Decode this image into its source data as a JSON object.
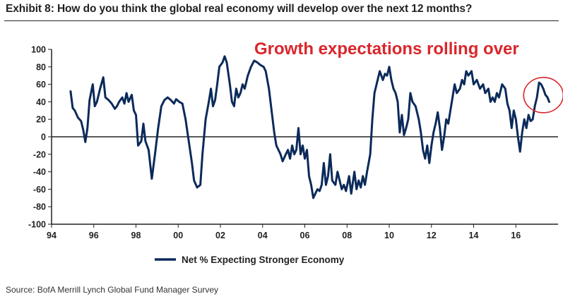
{
  "chart_data": {
    "type": "line",
    "title": "Exhibit 8: How do you think the global real economy will develop over the next 12 months?",
    "annotation": "Growth expectations rolling over",
    "source": "Source: BofA Merrill Lynch Global Fund Manager Survey",
    "xlabel": "",
    "ylabel": "",
    "xlim": [
      1994,
      2018
    ],
    "ylim": [
      -100,
      100
    ],
    "x_ticks": [
      1994,
      1996,
      1998,
      2000,
      2002,
      2004,
      2006,
      2008,
      2010,
      2012,
      2014,
      2016
    ],
    "x_tick_labels": [
      "94",
      "96",
      "98",
      "00",
      "02",
      "04",
      "06",
      "08",
      "10",
      "12",
      "14",
      "16"
    ],
    "y_ticks": [
      -100,
      -80,
      -60,
      -40,
      -20,
      0,
      20,
      40,
      60,
      80,
      100
    ],
    "y_tick_labels": [
      "-100",
      "-80",
      "-60",
      "-40",
      "-20",
      "0",
      "20",
      "40",
      "60",
      "80",
      "100"
    ],
    "legend": {
      "position": "bottom",
      "label": "Net % Expecting Stronger Economy"
    },
    "colors": {
      "series": "#0b2a5a",
      "annotation": "#d9262c",
      "axis": "#222222"
    },
    "series": [
      {
        "name": "Net % Expecting Stronger Economy",
        "points": [
          [
            1994.9,
            52
          ],
          [
            1995.0,
            33
          ],
          [
            1995.1,
            30
          ],
          [
            1995.25,
            22
          ],
          [
            1995.4,
            18
          ],
          [
            1995.5,
            8
          ],
          [
            1995.6,
            -6
          ],
          [
            1995.7,
            10
          ],
          [
            1995.8,
            42
          ],
          [
            1995.95,
            60
          ],
          [
            1996.05,
            35
          ],
          [
            1996.15,
            40
          ],
          [
            1996.3,
            55
          ],
          [
            1996.45,
            68
          ],
          [
            1996.55,
            45
          ],
          [
            1996.7,
            42
          ],
          [
            1996.85,
            38
          ],
          [
            1997.0,
            32
          ],
          [
            1997.1,
            35
          ],
          [
            1997.2,
            40
          ],
          [
            1997.35,
            45
          ],
          [
            1997.45,
            38
          ],
          [
            1997.55,
            50
          ],
          [
            1997.65,
            40
          ],
          [
            1997.8,
            48
          ],
          [
            1997.9,
            30
          ],
          [
            1998.0,
            25
          ],
          [
            1998.1,
            -10
          ],
          [
            1998.25,
            -5
          ],
          [
            1998.35,
            15
          ],
          [
            1998.45,
            -5
          ],
          [
            1998.6,
            -15
          ],
          [
            1998.75,
            -48
          ],
          [
            1998.9,
            -20
          ],
          [
            1999.05,
            10
          ],
          [
            1999.2,
            35
          ],
          [
            1999.35,
            42
          ],
          [
            1999.5,
            45
          ],
          [
            1999.65,
            42
          ],
          [
            1999.8,
            38
          ],
          [
            1999.9,
            43
          ],
          [
            2000.05,
            40
          ],
          [
            2000.2,
            38
          ],
          [
            2000.35,
            20
          ],
          [
            2000.5,
            -5
          ],
          [
            2000.65,
            -30
          ],
          [
            2000.75,
            -50
          ],
          [
            2000.9,
            -58
          ],
          [
            2001.05,
            -55
          ],
          [
            2001.15,
            -20
          ],
          [
            2001.3,
            20
          ],
          [
            2001.45,
            40
          ],
          [
            2001.55,
            55
          ],
          [
            2001.65,
            35
          ],
          [
            2001.75,
            42
          ],
          [
            2001.85,
            60
          ],
          [
            2001.95,
            80
          ],
          [
            2002.1,
            85
          ],
          [
            2002.2,
            92
          ],
          [
            2002.3,
            85
          ],
          [
            2002.45,
            60
          ],
          [
            2002.55,
            40
          ],
          [
            2002.65,
            35
          ],
          [
            2002.75,
            55
          ],
          [
            2002.85,
            45
          ],
          [
            2002.95,
            50
          ],
          [
            2003.05,
            60
          ],
          [
            2003.15,
            55
          ],
          [
            2003.3,
            70
          ],
          [
            2003.45,
            80
          ],
          [
            2003.6,
            87
          ],
          [
            2003.75,
            85
          ],
          [
            2003.9,
            82
          ],
          [
            2004.05,
            80
          ],
          [
            2004.15,
            75
          ],
          [
            2004.3,
            55
          ],
          [
            2004.45,
            25
          ],
          [
            2004.55,
            5
          ],
          [
            2004.65,
            -10
          ],
          [
            2004.75,
            -15
          ],
          [
            2004.85,
            -20
          ],
          [
            2004.95,
            -28
          ],
          [
            2005.1,
            -20
          ],
          [
            2005.2,
            -15
          ],
          [
            2005.3,
            -25
          ],
          [
            2005.4,
            -10
          ],
          [
            2005.5,
            -20
          ],
          [
            2005.6,
            -15
          ],
          [
            2005.7,
            10
          ],
          [
            2005.8,
            -20
          ],
          [
            2005.9,
            -10
          ],
          [
            2006.0,
            -25
          ],
          [
            2006.1,
            -15
          ],
          [
            2006.2,
            -45
          ],
          [
            2006.3,
            -55
          ],
          [
            2006.4,
            -70
          ],
          [
            2006.5,
            -65
          ],
          [
            2006.6,
            -60
          ],
          [
            2006.7,
            -62
          ],
          [
            2006.8,
            -55
          ],
          [
            2006.9,
            -30
          ],
          [
            2007.0,
            -55
          ],
          [
            2007.1,
            -45
          ],
          [
            2007.2,
            -20
          ],
          [
            2007.3,
            -50
          ],
          [
            2007.45,
            -55
          ],
          [
            2007.55,
            -40
          ],
          [
            2007.65,
            -50
          ],
          [
            2007.75,
            -60
          ],
          [
            2007.85,
            -55
          ],
          [
            2007.95,
            -62
          ],
          [
            2008.1,
            -45
          ],
          [
            2008.2,
            -65
          ],
          [
            2008.35,
            -40
          ],
          [
            2008.45,
            -60
          ],
          [
            2008.55,
            -50
          ],
          [
            2008.65,
            -58
          ],
          [
            2008.75,
            -45
          ],
          [
            2008.85,
            -55
          ],
          [
            2008.95,
            -40
          ],
          [
            2009.1,
            -20
          ],
          [
            2009.2,
            20
          ],
          [
            2009.3,
            50
          ],
          [
            2009.45,
            65
          ],
          [
            2009.55,
            75
          ],
          [
            2009.7,
            65
          ],
          [
            2009.8,
            72
          ],
          [
            2009.9,
            70
          ],
          [
            2010.0,
            80
          ],
          [
            2010.1,
            65
          ],
          [
            2010.2,
            55
          ],
          [
            2010.3,
            50
          ],
          [
            2010.4,
            40
          ],
          [
            2010.5,
            5
          ],
          [
            2010.6,
            25
          ],
          [
            2010.7,
            2
          ],
          [
            2010.8,
            10
          ],
          [
            2010.9,
            20
          ],
          [
            2011.0,
            50
          ],
          [
            2011.1,
            40
          ],
          [
            2011.25,
            35
          ],
          [
            2011.4,
            20
          ],
          [
            2011.5,
            5
          ],
          [
            2011.6,
            -15
          ],
          [
            2011.7,
            -25
          ],
          [
            2011.8,
            -10
          ],
          [
            2011.9,
            -30
          ],
          [
            2012.0,
            -10
          ],
          [
            2012.1,
            5
          ],
          [
            2012.2,
            15
          ],
          [
            2012.3,
            28
          ],
          [
            2012.4,
            10
          ],
          [
            2012.5,
            -15
          ],
          [
            2012.6,
            0
          ],
          [
            2012.7,
            20
          ],
          [
            2012.8,
            15
          ],
          [
            2012.9,
            30
          ],
          [
            2013.0,
            45
          ],
          [
            2013.1,
            60
          ],
          [
            2013.2,
            50
          ],
          [
            2013.35,
            55
          ],
          [
            2013.45,
            65
          ],
          [
            2013.55,
            60
          ],
          [
            2013.65,
            75
          ],
          [
            2013.75,
            70
          ],
          [
            2013.9,
            75
          ],
          [
            2014.0,
            60
          ],
          [
            2014.15,
            65
          ],
          [
            2014.3,
            55
          ],
          [
            2014.45,
            60
          ],
          [
            2014.55,
            50
          ],
          [
            2014.7,
            55
          ],
          [
            2014.8,
            40
          ],
          [
            2014.9,
            45
          ],
          [
            2015.0,
            40
          ],
          [
            2015.1,
            50
          ],
          [
            2015.2,
            45
          ],
          [
            2015.35,
            60
          ],
          [
            2015.5,
            55
          ],
          [
            2015.6,
            38
          ],
          [
            2015.7,
            30
          ],
          [
            2015.8,
            10
          ],
          [
            2015.9,
            30
          ],
          [
            2016.0,
            20
          ],
          [
            2016.1,
            0
          ],
          [
            2016.2,
            -17
          ],
          [
            2016.3,
            5
          ],
          [
            2016.4,
            20
          ],
          [
            2016.5,
            10
          ],
          [
            2016.6,
            25
          ],
          [
            2016.7,
            18
          ],
          [
            2016.8,
            20
          ],
          [
            2016.9,
            35
          ],
          [
            2017.0,
            45
          ],
          [
            2017.1,
            62
          ],
          [
            2017.2,
            60
          ],
          [
            2017.3,
            55
          ],
          [
            2017.4,
            48
          ],
          [
            2017.5,
            45
          ],
          [
            2017.58,
            40
          ]
        ]
      }
    ]
  }
}
